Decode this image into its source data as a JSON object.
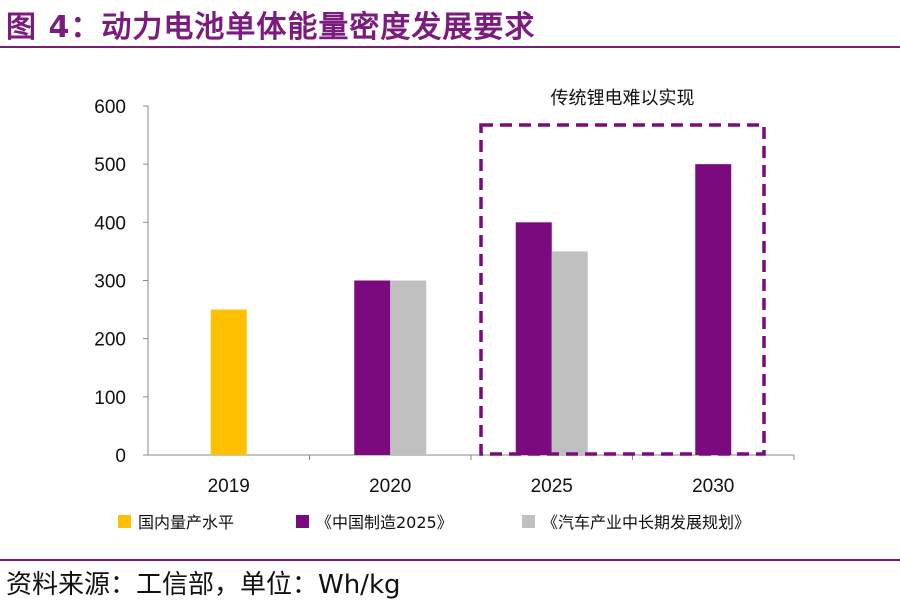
{
  "header": {
    "title": "图 4：动力电池单体能量密度发展要求"
  },
  "footer": {
    "source": "资料来源：工信部，单位：Wh/kg"
  },
  "colors": {
    "accent": "#7b1b7e",
    "yellow": "#ffc000",
    "purple": "#7b0a7f",
    "gray": "#c0c0c0"
  },
  "chart_data": {
    "type": "bar",
    "categories": [
      "2019",
      "2020",
      "2025",
      "2030"
    ],
    "ylim": [
      0,
      600
    ],
    "yticks": [
      0,
      100,
      200,
      300,
      400,
      500,
      600
    ],
    "series": [
      {
        "name": "国内量产水平",
        "color": "#ffc000",
        "values": [
          250,
          null,
          null,
          null
        ]
      },
      {
        "name": "《中国制造2025》",
        "color": "#7b0a7f",
        "values": [
          null,
          300,
          400,
          500
        ]
      },
      {
        "name": "《汽车产业中长期发展规划》",
        "color": "#c0c0c0",
        "values": [
          null,
          300,
          350,
          null
        ]
      }
    ],
    "annotation": "传统锂电难以实现",
    "grid": false,
    "legend_position": "bottom"
  }
}
